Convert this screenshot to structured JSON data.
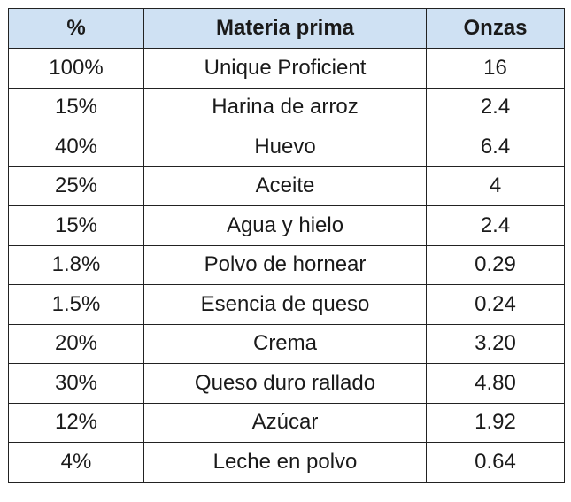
{
  "table": {
    "headers": [
      "%",
      "Materia prima",
      "Onzas"
    ],
    "rows": [
      [
        "100%",
        "Unique Proficient",
        "16"
      ],
      [
        "15%",
        "Harina de arroz",
        "2.4"
      ],
      [
        "40%",
        "Huevo",
        "6.4"
      ],
      [
        "25%",
        "Aceite",
        "4"
      ],
      [
        "15%",
        "Agua y hielo",
        "2.4"
      ],
      [
        "1.8%",
        "Polvo de hornear",
        "0.29"
      ],
      [
        "1.5%",
        "Esencia de queso",
        "0.24"
      ],
      [
        "20%",
        "Crema",
        "3.20"
      ],
      [
        "30%",
        "Queso duro rallado",
        "4.80"
      ],
      [
        "12%",
        "Azúcar",
        "1.92"
      ],
      [
        "4%",
        "Leche en polvo",
        "0.64"
      ]
    ]
  },
  "colors": {
    "header_background": "#cfe1f3",
    "border": "#222222",
    "text": "#1a1a1a"
  }
}
